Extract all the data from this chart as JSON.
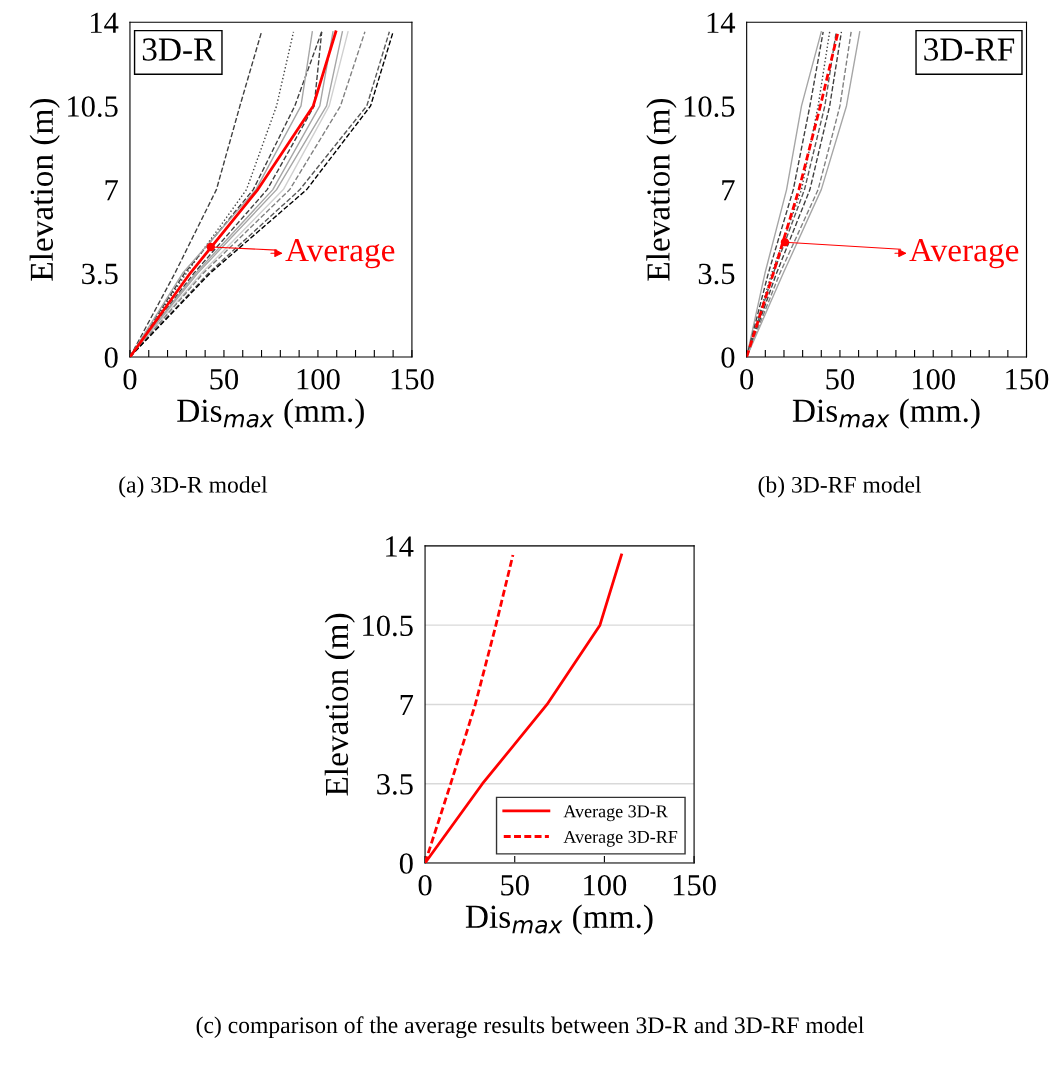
{
  "chart_data": [
    {
      "type": "line",
      "xlabel": "Dis$_{max}$ (mm.)",
      "ylabel": "Elevation (m)",
      "xlim": [
        0,
        150
      ],
      "ylim": [
        0,
        14
      ],
      "xticks": [
        0,
        {
          "value": 10,
          "label": null
        },
        {
          "value": 20,
          "label": null
        },
        {
          "value": 30,
          "label": null
        },
        {
          "value": 40,
          "label": null
        },
        50,
        {
          "value": 60,
          "label": null
        },
        {
          "value": 70,
          "label": null
        },
        {
          "value": 80,
          "label": null
        },
        {
          "value": 90,
          "label": null
        },
        100,
        {
          "value": 110,
          "label": null
        },
        {
          "value": 120,
          "label": null
        },
        {
          "value": 130,
          "label": null
        },
        {
          "value": 140,
          "label": null
        },
        150
      ],
      "yticks": [
        0,
        3.5,
        7,
        10.5,
        14
      ],
      "grid": false,
      "legend": false,
      "marker": "none",
      "annotations": [
        "3D-R",
        {
          "text": "Average",
          "x": 43,
          "y": 4.6
        },
        "(a) 3D-R model"
      ],
      "series": [
        {
          "x": [
            0,
            23.9,
            46,
            58.5,
            70
          ],
          "values": [
            0,
            3.5,
            7,
            10.5,
            13.6
          ],
          "color": "#404040",
          "line_style": "dashed"
        },
        {
          "x": [
            0,
            30,
            62,
            78,
            87
          ],
          "values": [
            0,
            3.5,
            7,
            10.5,
            13.6
          ],
          "color": "#404040",
          "line_style": "dotted"
        },
        {
          "x": [
            0,
            29,
            65.6,
            87.7,
            102
          ],
          "values": [
            0,
            3.5,
            7,
            10.5,
            13.6
          ],
          "color": "#404040",
          "line_style": "dashed"
        },
        {
          "x": [
            0,
            28,
            67,
            91,
            97
          ],
          "values": [
            0,
            3.5,
            7,
            10.5,
            13.6
          ],
          "color": "#a6a6a6",
          "line_style": "solid"
        },
        {
          "x": [
            0,
            34,
            73,
            98,
            102
          ],
          "values": [
            0,
            3.5,
            7,
            10.5,
            13.6
          ],
          "color": "#404040",
          "line_style": "dashed"
        },
        {
          "x": [
            0,
            35,
            76,
            101,
            108
          ],
          "values": [
            0,
            3.5,
            7,
            10.5,
            13.6
          ],
          "color": "#a6a6a6",
          "line_style": "solid"
        },
        {
          "x": [
            0,
            36,
            78,
            104.6,
            113
          ],
          "values": [
            0,
            3.5,
            7,
            10.5,
            13.6
          ],
          "color": "#a6a6a6",
          "line_style": "solid"
        },
        {
          "x": [
            0,
            38,
            81.6,
            106,
            116
          ],
          "values": [
            0,
            3.5,
            7,
            10.5,
            13.6
          ],
          "color": "#d0d0d0",
          "line_style": "solid"
        },
        {
          "x": [
            0,
            39,
            85,
            112,
            125
          ],
          "values": [
            0,
            3.5,
            7,
            10.5,
            13.6
          ],
          "color": "#808080",
          "line_style": "dashed"
        },
        {
          "x": [
            0,
            41.7,
            90.4,
            126,
            138
          ],
          "values": [
            0,
            3.5,
            7,
            10.5,
            13.6
          ],
          "color": "#595959",
          "line_style": "dashed"
        },
        {
          "x": [
            0,
            42.6,
            94,
            128,
            140
          ],
          "values": [
            0,
            3.5,
            7,
            10.5,
            13.6
          ],
          "color": "#000000",
          "line_style": "dashed"
        },
        {
          "x": [
            0,
            32,
            68,
            97.5,
            109.5
          ],
          "values": [
            0,
            3.5,
            7,
            10.5,
            13.6
          ],
          "color": "#ff0000",
          "line_style": "solid"
        }
      ]
    },
    {
      "type": "line",
      "xlabel": "Dis$_{max}$ (mm.)",
      "ylabel": "Elevation (m)",
      "xlim": [
        0,
        150
      ],
      "ylim": [
        0,
        14
      ],
      "xticks": [
        0,
        {
          "value": 10,
          "label": null
        },
        {
          "value": 20,
          "label": null
        },
        {
          "value": 30,
          "label": null
        },
        {
          "value": 40,
          "label": null
        },
        50,
        {
          "value": 60,
          "label": null
        },
        {
          "value": 70,
          "label": null
        },
        {
          "value": 80,
          "label": null
        },
        {
          "value": 90,
          "label": null
        },
        100,
        {
          "value": 110,
          "label": null
        },
        {
          "value": 120,
          "label": null
        },
        {
          "value": 130,
          "label": null
        },
        {
          "value": 140,
          "label": null
        },
        150
      ],
      "yticks": [
        0,
        3.5,
        7,
        10.5,
        14
      ],
      "grid": false,
      "legend": false,
      "marker": "none",
      "annotations": [
        "3D-RF",
        {
          "text": "Average",
          "x": 20.5,
          "y": 4.8
        },
        "(b) 3D-RF model"
      ],
      "series": [
        {
          "x": [
            0,
            9.8,
            21.4,
            29.4,
            40
          ],
          "values": [
            0,
            3.5,
            7,
            10.5,
            13.6
          ],
          "color": "#a6a6a6",
          "line_style": "solid"
        },
        {
          "x": [
            0,
            11.6,
            25,
            33.9,
            41
          ],
          "values": [
            0,
            3.5,
            7,
            10.5,
            13.6
          ],
          "color": "#404040",
          "line_style": "dashed"
        },
        {
          "x": [
            0,
            13.4,
            29.4,
            38.3,
            44.5
          ],
          "values": [
            0,
            3.5,
            7,
            10.5,
            13.6
          ],
          "color": "#404040",
          "line_style": "dotted"
        },
        {
          "x": [
            0,
            14.3,
            31,
            41.9,
            48
          ],
          "values": [
            0,
            3.5,
            7,
            10.5,
            13.6
          ],
          "color": "#595959",
          "line_style": "dashed"
        },
        {
          "x": [
            0,
            16,
            33.9,
            44.5,
            50.8
          ],
          "values": [
            0,
            3.5,
            7,
            10.5,
            13.6
          ],
          "color": "#404040",
          "line_style": "dashed"
        },
        {
          "x": [
            0,
            17.8,
            38.3,
            50,
            56
          ],
          "values": [
            0,
            3.5,
            7,
            10.5,
            13.6
          ],
          "color": "#808080",
          "line_style": "dashed"
        },
        {
          "x": [
            0,
            19.6,
            40,
            53.5,
            60.6
          ],
          "values": [
            0,
            3.5,
            7,
            10.5,
            13.6
          ],
          "color": "#a6a6a6",
          "line_style": "solid"
        },
        {
          "x": [
            0,
            14.3,
            28,
            39.5,
            49
          ],
          "values": [
            0,
            3.5,
            7,
            10.5,
            13.6
          ],
          "color": "#ff0000",
          "line_style": "dashed"
        }
      ]
    },
    {
      "type": "line",
      "xlabel": "Dis$_{max}$ (mm.)",
      "ylabel": "Elevation (m)",
      "xlim": [
        0,
        150
      ],
      "ylim": [
        0,
        14
      ],
      "xticks": [
        0,
        50,
        100,
        150
      ],
      "yticks": [
        0,
        3.5,
        7,
        10.5,
        14
      ],
      "grid": "y",
      "legend": "bottom right",
      "marker": "none",
      "annotations": [
        "(c) comparison of the average results between 3D-R and 3D-RF model"
      ],
      "series": [
        {
          "name": "Average 3D-R",
          "x": [
            0,
            32,
            68,
            97.5,
            109.5
          ],
          "values": [
            0,
            3.5,
            7,
            10.5,
            13.6
          ],
          "color": "#ff0000",
          "line_style": "solid"
        },
        {
          "name": "Average 3D-RF",
          "x": [
            0,
            14.3,
            28,
            39.5,
            49
          ],
          "values": [
            0,
            3.5,
            7,
            10.5,
            13.6
          ],
          "color": "#ff0000",
          "line_style": "dashed"
        }
      ]
    }
  ]
}
